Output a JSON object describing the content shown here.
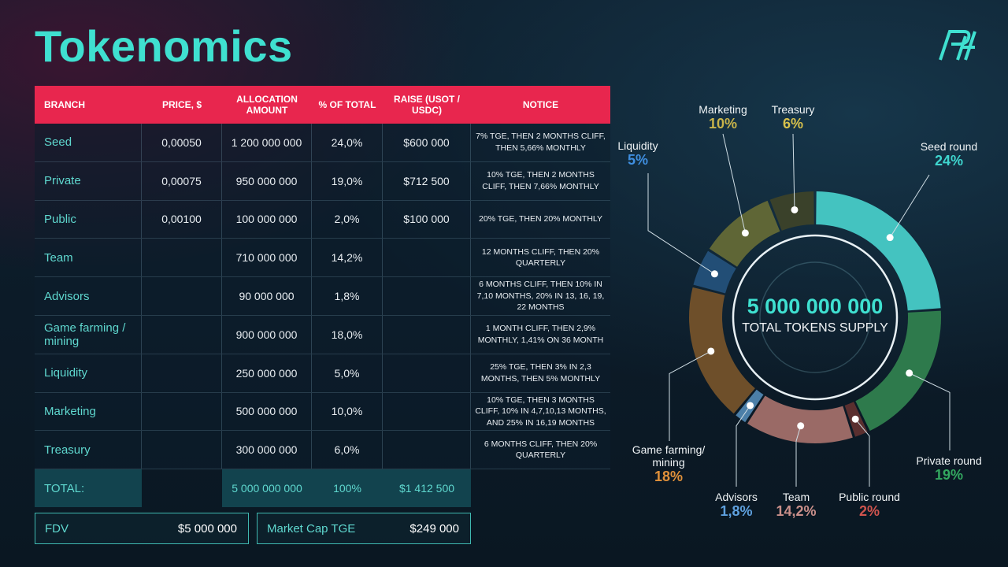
{
  "title": "Tokenomics",
  "logo": "PH",
  "table": {
    "headers": [
      "BRANCH",
      "PRICE, $",
      "ALLOCATION AMOUNT",
      "% OF TOTAL",
      "RAISE (USOT / USDC)",
      "NOTICE"
    ],
    "rows": [
      [
        "Seed",
        "0,00050",
        "1 200 000 000",
        "24,0%",
        "$600 000",
        "7% TGE, THEN 2 MONTHS CLIFF, THEN 5,66% MONTHLY"
      ],
      [
        "Private",
        "0,00075",
        "950 000 000",
        "19,0%",
        "$712 500",
        "10% TGE, THEN 2 MONTHS CLIFF, THEN 7,66% MONTHLY"
      ],
      [
        "Public",
        "0,00100",
        "100 000 000",
        "2,0%",
        "$100 000",
        "20% TGE, THEN 20% MONTHLY"
      ],
      [
        "Team",
        "",
        "710 000 000",
        "14,2%",
        "",
        "12 MONTHS CLIFF, THEN 20% QUARTERLY"
      ],
      [
        "Advisors",
        "",
        "90 000 000",
        "1,8%",
        "",
        "6 MONTHS CLIFF, THEN 10% IN 7,10 MONTHS, 20% IN 13, 16, 19, 22 MONTHS"
      ],
      [
        "Game farming / mining",
        "",
        "900 000 000",
        "18,0%",
        "",
        "1 MONTH CLIFF, THEN 2,9% MONTHLY, 1,41% ON 36 MONTH"
      ],
      [
        "Liquidity",
        "",
        "250 000 000",
        "5,0%",
        "",
        "25% TGE, THEN 3% IN 2,3 MONTHS, THEN 5% MONTHLY"
      ],
      [
        "Marketing",
        "",
        "500 000 000",
        "10,0%",
        "",
        "10% TGE, THEN 3 MONTHS CLIFF, 10% IN 4,7,10,13 MONTHS, AND 25% IN 16,19 MONTHS"
      ],
      [
        "Treasury",
        "",
        "300 000 000",
        "6,0%",
        "",
        "6 MONTHS CLIFF, THEN 20% QUARTERLY"
      ]
    ],
    "total": [
      "TOTAL:",
      "",
      "5 000 000 000",
      "100%",
      "$1 412 500",
      ""
    ]
  },
  "fdv": {
    "label": "FDV",
    "value": "$5 000 000"
  },
  "mcap": {
    "label": "Market Cap TGE",
    "value": "$249 000"
  },
  "chart_data": {
    "type": "pie",
    "center_value": "5 000 000 000",
    "center_label": "TOTAL TOKENS SUPPLY",
    "slices": [
      {
        "label": "Seed round",
        "pct_label": "24%",
        "value": 24,
        "color": "#44c3c0"
      },
      {
        "label": "Private round",
        "pct_label": "19%",
        "value": 19,
        "color": "#2e7a4c"
      },
      {
        "label": "Public round",
        "pct_label": "2%",
        "value": 2,
        "color": "#5a2f2f"
      },
      {
        "label": "Team",
        "pct_label": "14,2%",
        "value": 14.2,
        "color": "#9a6a66"
      },
      {
        "label": "Advisors",
        "pct_label": "1,8%",
        "value": 1.8,
        "color": "#4c7fa8"
      },
      {
        "label": "Game farming/ mining",
        "pct_label": "18%",
        "value": 18,
        "color": "#6e4f2a"
      },
      {
        "label": "Liquidity",
        "pct_label": "5%",
        "value": 5,
        "color": "#224e76"
      },
      {
        "label": "Marketing",
        "pct_label": "10%",
        "value": 10,
        "color": "#5f6636"
      },
      {
        "label": "Treasury",
        "pct_label": "6%",
        "value": 6,
        "color": "#3a412a"
      }
    ],
    "label_colors": {
      "Seed round": "#3fd6cf",
      "Private round": "#33a860",
      "Public round": "#d0544e",
      "Team": "#c98f8a",
      "Advisors": "#5ea0de",
      "Game farming/ mining": "#e0903a",
      "Liquidity": "#3f8fe0",
      "Marketing": "#c9b44a",
      "Treasury": "#d8c24c"
    }
  }
}
